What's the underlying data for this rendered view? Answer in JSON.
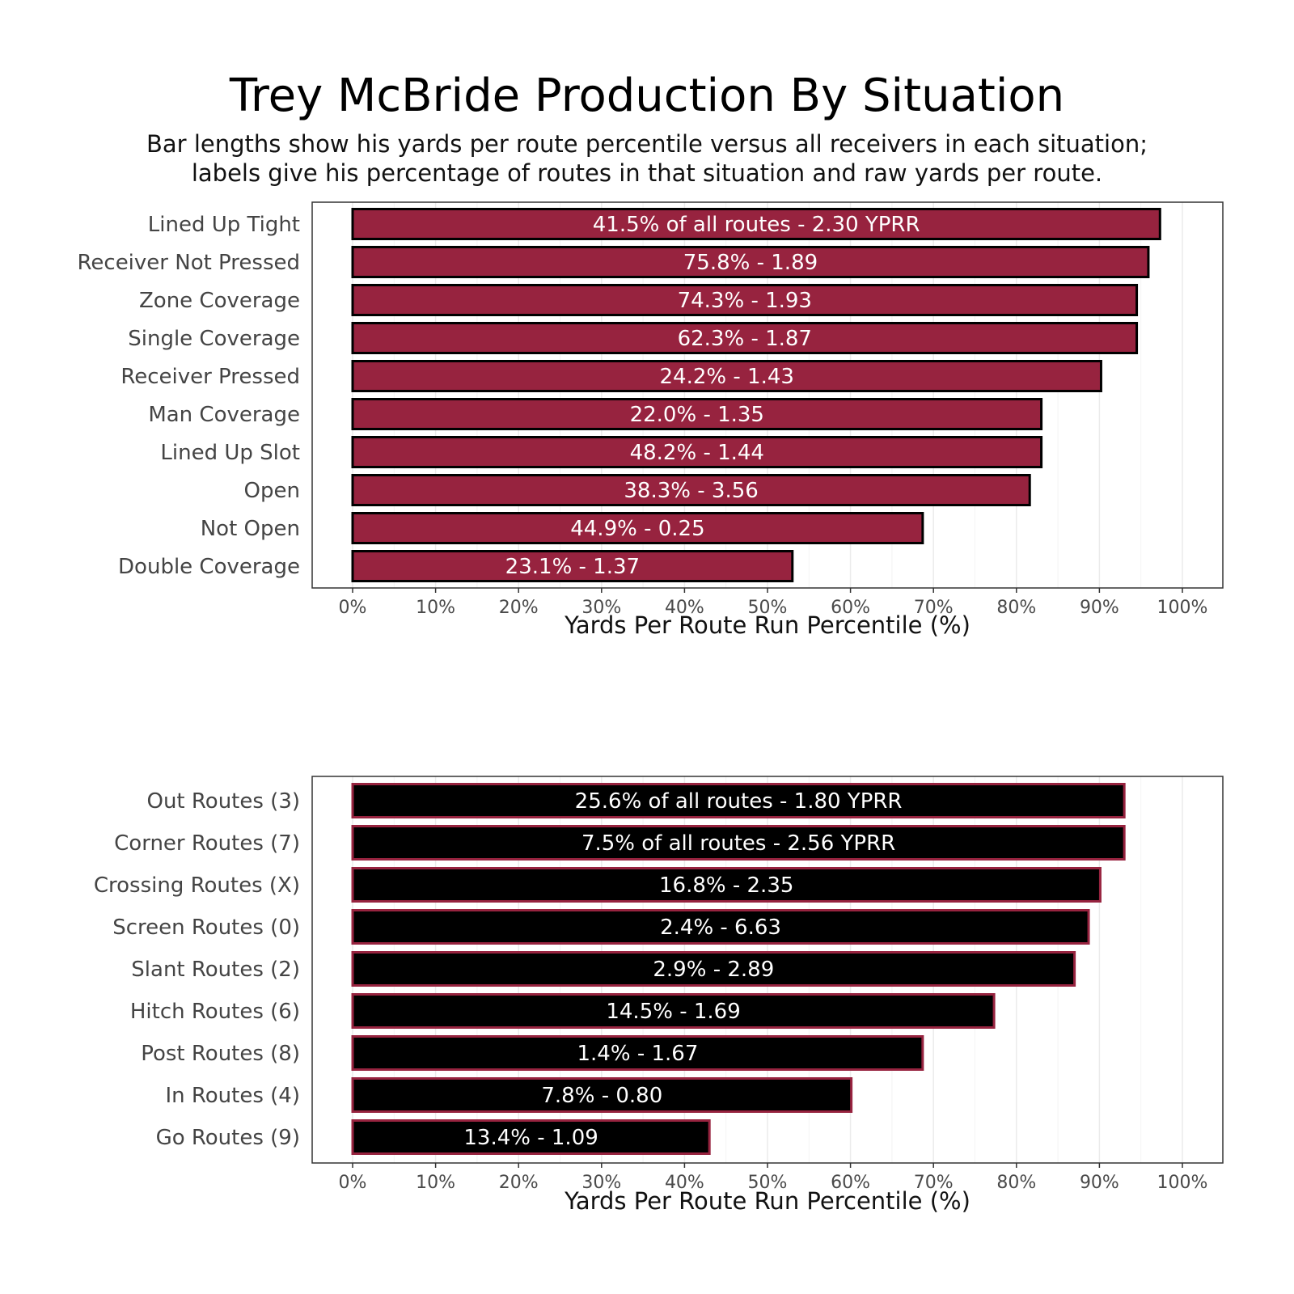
{
  "title": "Trey McBride Production By Situation",
  "subtitle_lines": [
    "Bar lengths show his yards per route percentile versus all receivers in each situation;",
    "labels give his percentage of routes in that situation and raw yards per route."
  ],
  "colors": {
    "cardinal": "#97233F",
    "black": "#000000",
    "grid": "#ebebeb",
    "panel_border": "#333333"
  },
  "chart_data": [
    {
      "type": "bar",
      "orientation": "horizontal",
      "title": "Trey McBride Production By Situation",
      "xlabel": "Yards Per Route Run Percentile (%)",
      "ylabel": "",
      "xlim": [
        0,
        100
      ],
      "x_ticks": [
        0,
        10,
        20,
        30,
        40,
        50,
        60,
        70,
        80,
        90,
        100
      ],
      "x_tick_labels": [
        "0%",
        "10%",
        "20%",
        "30%",
        "40%",
        "50%",
        "60%",
        "70%",
        "80%",
        "90%",
        "100%"
      ],
      "grid": true,
      "fill_color": "#97233F",
      "outline_color": "#000000",
      "categories": [
        "Lined Up Tight",
        "Receiver Not Pressed",
        "Zone Coverage",
        "Single Coverage",
        "Receiver Pressed",
        "Man Coverage",
        "Lined Up Slot",
        "Open",
        "Not Open",
        "Double Coverage"
      ],
      "values": [
        97.3,
        95.9,
        94.5,
        94.5,
        90.2,
        83.0,
        83.0,
        81.6,
        68.7,
        53.0
      ],
      "labels": [
        "41.5% of all routes - 2.30 YPRR",
        "75.8% - 1.89",
        "74.3% - 1.93",
        "62.3% - 1.87",
        "24.2% - 1.43",
        "22.0% - 1.35",
        "48.2% - 1.44",
        "38.3% - 3.56",
        "44.9% - 0.25",
        "23.1% - 1.37"
      ]
    },
    {
      "type": "bar",
      "orientation": "horizontal",
      "title": "",
      "xlabel": "Yards Per Route Run Percentile (%)",
      "ylabel": "",
      "xlim": [
        0,
        100
      ],
      "x_ticks": [
        0,
        10,
        20,
        30,
        40,
        50,
        60,
        70,
        80,
        90,
        100
      ],
      "x_tick_labels": [
        "0%",
        "10%",
        "20%",
        "30%",
        "40%",
        "50%",
        "60%",
        "70%",
        "80%",
        "90%",
        "100%"
      ],
      "grid": true,
      "fill_color": "#000000",
      "outline_color": "#97233F",
      "categories": [
        "Out Routes (3)",
        "Corner Routes (7)",
        "Crossing Routes (X)",
        "Screen Routes (0)",
        "Slant Routes (2)",
        "Hitch Routes (6)",
        "Post Routes (8)",
        "In Routes (4)",
        "Go Routes (9)"
      ],
      "values": [
        93.0,
        93.0,
        90.1,
        88.7,
        87.0,
        77.3,
        68.7,
        60.1,
        43.0
      ],
      "labels": [
        "25.6% of all routes - 1.80 YPRR",
        "7.5% of all routes - 2.56 YPRR",
        "16.8% - 2.35",
        "2.4% - 6.63",
        "2.9% - 2.89",
        "14.5% - 1.69",
        "1.4% - 1.67",
        "7.8% - 0.80",
        "13.4% - 1.09"
      ]
    }
  ]
}
